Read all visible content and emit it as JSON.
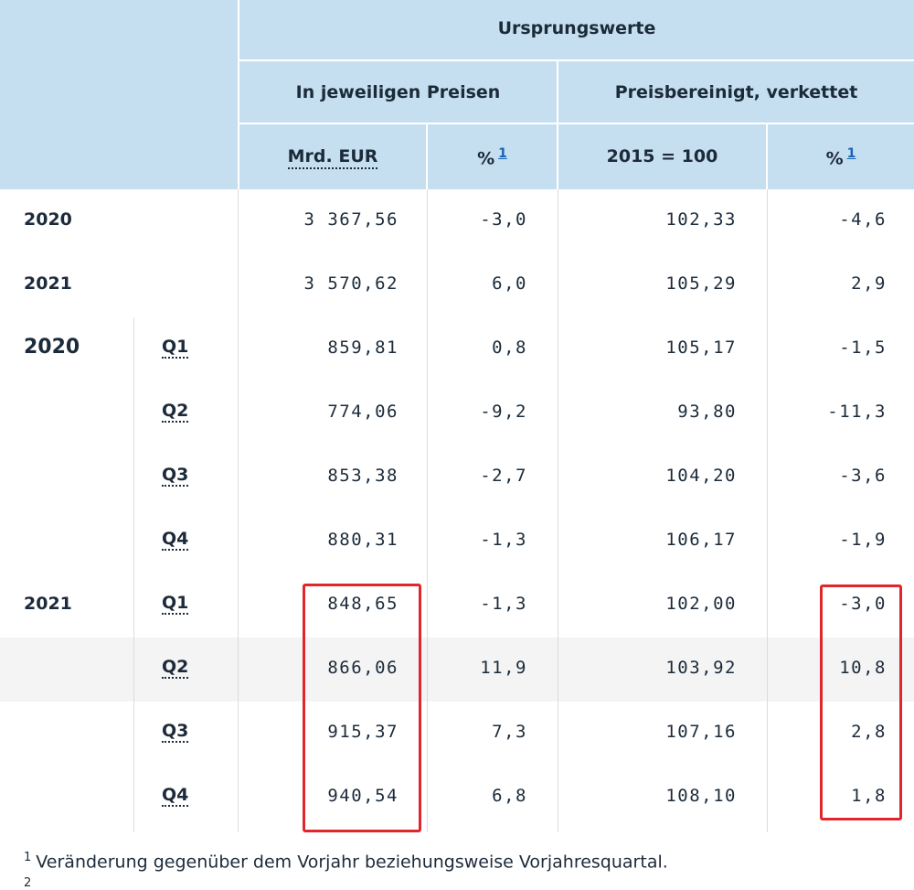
{
  "header": {
    "group_title": "Ursprungswerte",
    "sub_current": "In jeweiligen Preisen",
    "sub_adjusted": "Preisbereinigt, verkettet",
    "unit_eur": "Mrd. EUR",
    "unit_pct_1": "%",
    "unit_index": "2015 = 100",
    "unit_pct_2": "%",
    "footnote_ref": "1"
  },
  "annual": [
    {
      "year": "2020",
      "eur": "3 367,56",
      "pct1": "-3,0",
      "index": "102,33",
      "pct2": "-4,6"
    },
    {
      "year": "2021",
      "eur": "3 570,62",
      "pct1": "6,0",
      "index": "105,29",
      "pct2": "2,9"
    }
  ],
  "quarterly": [
    {
      "year": "2020",
      "quarter": "Q1",
      "eur": "859,81",
      "pct1": "0,8",
      "index": "105,17",
      "pct2": "-1,5"
    },
    {
      "year": "",
      "quarter": "Q2",
      "eur": "774,06",
      "pct1": "-9,2",
      "index": "93,80",
      "pct2": "-11,3"
    },
    {
      "year": "",
      "quarter": "Q3",
      "eur": "853,38",
      "pct1": "-2,7",
      "index": "104,20",
      "pct2": "-3,6"
    },
    {
      "year": "",
      "quarter": "Q4",
      "eur": "880,31",
      "pct1": "-1,3",
      "index": "106,17",
      "pct2": "-1,9"
    },
    {
      "year": "2021",
      "quarter": "Q1",
      "eur": "848,65",
      "pct1": "-1,3",
      "index": "102,00",
      "pct2": "-3,0"
    },
    {
      "year": "",
      "quarter": "Q2",
      "eur": "866,06",
      "pct1": "11,9",
      "index": "103,92",
      "pct2": "10,8"
    },
    {
      "year": "",
      "quarter": "Q3",
      "eur": "915,37",
      "pct1": "7,3",
      "index": "107,16",
      "pct2": "2,8"
    },
    {
      "year": "",
      "quarter": "Q4",
      "eur": "940,54",
      "pct1": "6,8",
      "index": "108,10",
      "pct2": "1,8"
    }
  ],
  "footnote": {
    "marker": "1",
    "text": "Veränderung gegenüber dem Vorjahr beziehungsweise Vorjahresquartal.",
    "marker2": "2"
  },
  "highlight_color": "#e0262c"
}
